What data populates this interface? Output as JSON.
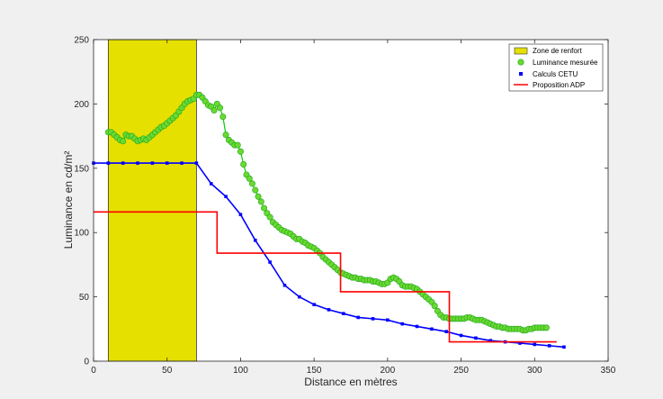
{
  "chart_data": {
    "type": "line",
    "xlabel": "Distance en mètres",
    "ylabel": "Luminance en cd/m²",
    "xlim": [
      0,
      350
    ],
    "ylim": [
      0,
      250
    ],
    "xticks": [
      0,
      50,
      100,
      150,
      200,
      250,
      300,
      350
    ],
    "yticks": [
      0,
      50,
      100,
      150,
      200,
      250
    ],
    "grid": false,
    "legend_position": "top-right",
    "zone": {
      "name": "Zone de renfort",
      "x_start": 10,
      "x_end": 70,
      "color": "#e5e000"
    },
    "series": [
      {
        "name": "Luminance mesurée",
        "type": "line-markers",
        "color": "#00d000",
        "marker_color": "#6ad930",
        "x": [
          10,
          12,
          14,
          16,
          18,
          20,
          22,
          24,
          26,
          28,
          30,
          32,
          34,
          36,
          38,
          40,
          42,
          44,
          46,
          48,
          50,
          52,
          54,
          56,
          58,
          60,
          62,
          64,
          66,
          68,
          70,
          72,
          74,
          76,
          78,
          80,
          82,
          84,
          86,
          88,
          90,
          92,
          94,
          96,
          98,
          100,
          102,
          104,
          106,
          108,
          110,
          112,
          114,
          116,
          118,
          120,
          122,
          124,
          126,
          128,
          130,
          132,
          134,
          136,
          138,
          140,
          142,
          144,
          146,
          148,
          150,
          152,
          154,
          156,
          158,
          160,
          162,
          164,
          166,
          168,
          170,
          172,
          174,
          176,
          178,
          180,
          182,
          184,
          186,
          188,
          190,
          192,
          194,
          196,
          198,
          200,
          202,
          204,
          206,
          208,
          210,
          212,
          214,
          216,
          218,
          220,
          222,
          224,
          226,
          228,
          230,
          232,
          234,
          236,
          238,
          240,
          242,
          244,
          246,
          248,
          250,
          252,
          254,
          256,
          258,
          260,
          262,
          264,
          266,
          268,
          270,
          272,
          274,
          276,
          278,
          280,
          282,
          284,
          286,
          288,
          290,
          292,
          294,
          296,
          298,
          300,
          302,
          304,
          306,
          308
        ],
        "y": [
          178,
          178,
          176,
          174,
          172,
          171,
          176,
          175,
          175,
          173,
          171,
          172,
          173,
          172,
          174,
          176,
          178,
          180,
          182,
          183,
          185,
          187,
          189,
          191,
          194,
          197,
          200,
          202,
          203,
          204,
          207,
          207,
          205,
          202,
          199,
          198,
          195,
          200,
          197,
          190,
          176,
          172,
          170,
          168,
          168,
          163,
          153,
          145,
          142,
          138,
          133,
          128,
          124,
          119,
          115,
          112,
          108,
          106,
          104,
          102,
          101,
          100,
          99,
          97,
          95,
          95,
          93,
          92,
          90,
          89,
          88,
          86,
          84,
          81,
          79,
          77,
          75,
          73,
          71,
          69,
          68,
          67,
          66,
          65,
          65,
          64,
          64,
          63,
          63,
          63,
          62,
          62,
          61,
          60,
          60,
          61,
          64,
          65,
          64,
          62,
          59,
          58,
          58,
          58,
          57,
          56,
          54,
          52,
          50,
          48,
          46,
          43,
          39,
          36,
          34,
          34,
          33,
          33,
          33,
          33,
          33,
          33,
          34,
          34,
          33,
          32,
          32,
          32,
          31,
          30,
          29,
          28,
          27,
          27,
          26,
          26,
          25,
          25,
          25,
          25,
          25,
          24,
          24,
          25,
          25,
          26,
          26,
          26,
          26,
          26
        ]
      },
      {
        "name": "Calculs CETU",
        "type": "line-markers",
        "color": "#0000ff",
        "x": [
          0,
          10,
          20,
          30,
          40,
          50,
          60,
          70,
          80,
          90,
          100,
          110,
          120,
          130,
          140,
          150,
          160,
          170,
          180,
          190,
          200,
          210,
          220,
          230,
          240,
          250,
          260,
          270,
          280,
          290,
          300,
          310,
          320
        ],
        "y": [
          154,
          154,
          154,
          154,
          154,
          154,
          154,
          154,
          138,
          128,
          114,
          94,
          77,
          59,
          50,
          44,
          40,
          37,
          34,
          33,
          32,
          29,
          27,
          25,
          23,
          20,
          18,
          16,
          15,
          14,
          13,
          12,
          11
        ]
      },
      {
        "name": "Proposition ADP",
        "type": "step",
        "color": "#ff0000",
        "x": [
          0,
          84,
          84,
          168,
          168,
          242,
          242,
          315
        ],
        "y": [
          116,
          116,
          84,
          84,
          54,
          54,
          15,
          15
        ]
      }
    ]
  }
}
